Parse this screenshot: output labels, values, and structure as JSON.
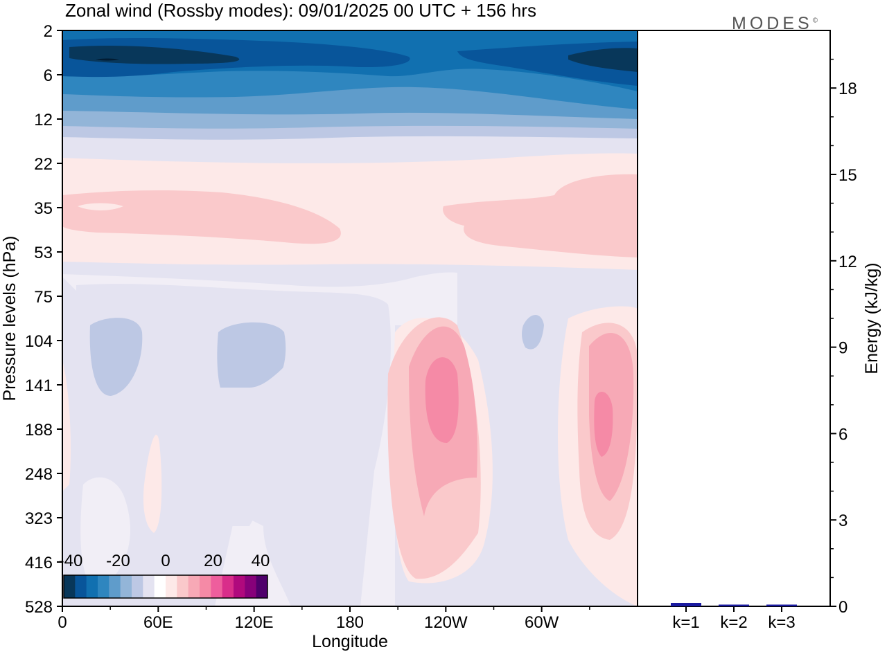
{
  "title": "Zonal wind (Rossby modes):  09/01/2025  00 UTC  + 156 hrs",
  "logo": {
    "text": "MODES",
    "mark": "©"
  },
  "chart_data": [
    {
      "type": "heatmap",
      "xlabel": "Longitude",
      "ylabel": "Pressure levels (hPa)",
      "x_ticks": [
        "0",
        "60E",
        "120E",
        "180",
        "120W",
        "60W"
      ],
      "y_ticks": [
        "2",
        "6",
        "12",
        "22",
        "35",
        "53",
        "75",
        "104",
        "141",
        "188",
        "248",
        "323",
        "416",
        "528"
      ],
      "colorbar": {
        "labels": [
          "-40",
          "-20",
          "0",
          "20",
          "40"
        ],
        "colors": [
          "#08375a",
          "#08559a",
          "#1170b0",
          "#2f86bf",
          "#5f9ccb",
          "#93b5d8",
          "#bdc8e4",
          "#e4e3f1",
          "#ffffff",
          "#fde9e8",
          "#fac9cb",
          "#f7a9b6",
          "#f58aa6",
          "#ee5e9d",
          "#d92d8a",
          "#b0097d",
          "#87017a",
          "#4f006b"
        ]
      }
    },
    {
      "type": "bar",
      "ylabel": "Energy (kJ/kg)",
      "categories": [
        "k=1",
        "k=2",
        "k=3"
      ],
      "values": [
        0.12,
        0.06,
        0.06
      ],
      "ylim": [
        0,
        20
      ],
      "y_ticks": [
        "0",
        "3",
        "6",
        "9",
        "12",
        "15",
        "18"
      ],
      "bar_color": "#1a1aa0"
    }
  ]
}
